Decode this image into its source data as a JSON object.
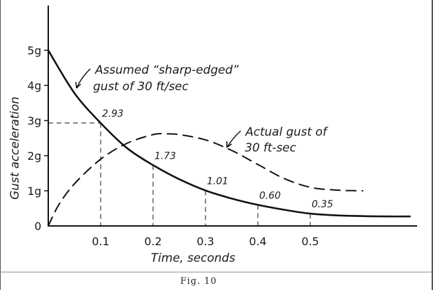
{
  "caption": "Fig. 10",
  "chart_data": {
    "type": "line",
    "xlabel": "Time, seconds",
    "ylabel": "Gust acceleration",
    "xlim": [
      0,
      0.69
    ],
    "ylim": [
      0,
      6
    ],
    "x_ticks": [
      "0.1",
      "0.2",
      "0.3",
      "0.4",
      "0.5"
    ],
    "x_tick_values": [
      0.1,
      0.2,
      0.3,
      0.4,
      0.5
    ],
    "y_ticks": [
      "0",
      "1g",
      "2g",
      "3g",
      "4g",
      "5g"
    ],
    "y_tick_values": [
      0,
      1,
      2,
      3,
      4,
      5
    ],
    "series": [
      {
        "name": "Assumed “sharp-edged” gust of 30 ft/sec",
        "style": "solid",
        "x": [
          0,
          0.05,
          0.1,
          0.15,
          0.2,
          0.25,
          0.3,
          0.35,
          0.4,
          0.45,
          0.5,
          0.55,
          0.6,
          0.65,
          0.69
        ],
        "y": [
          5.0,
          3.78,
          2.93,
          2.22,
          1.73,
          1.33,
          1.01,
          0.78,
          0.6,
          0.46,
          0.35,
          0.3,
          0.28,
          0.27,
          0.27
        ]
      },
      {
        "name": "Actual gust of 30 ft-sec",
        "style": "dashed",
        "x": [
          0,
          0.02,
          0.05,
          0.1,
          0.15,
          0.2,
          0.225,
          0.25,
          0.3,
          0.35,
          0.4,
          0.45,
          0.5,
          0.55,
          0.6
        ],
        "y": [
          0,
          0.6,
          1.2,
          1.9,
          2.35,
          2.6,
          2.62,
          2.6,
          2.45,
          2.15,
          1.75,
          1.35,
          1.1,
          1.02,
          1.0
        ]
      }
    ],
    "annotations": [
      {
        "x": 0.1,
        "y": 2.93,
        "label": "2.93"
      },
      {
        "x": 0.2,
        "y": 1.73,
        "label": "1.73"
      },
      {
        "x": 0.3,
        "y": 1.01,
        "label": "1.01"
      },
      {
        "x": 0.4,
        "y": 0.6,
        "label": "0.60"
      },
      {
        "x": 0.5,
        "y": 0.35,
        "label": "0.35"
      }
    ],
    "labels": {
      "sharp_line1": "Assumed “sharp-edged”",
      "sharp_line2": "gust of 30 ft/sec",
      "actual_line1": "Actual gust of",
      "actual_line2": "30 ft-sec"
    },
    "grid": false
  }
}
